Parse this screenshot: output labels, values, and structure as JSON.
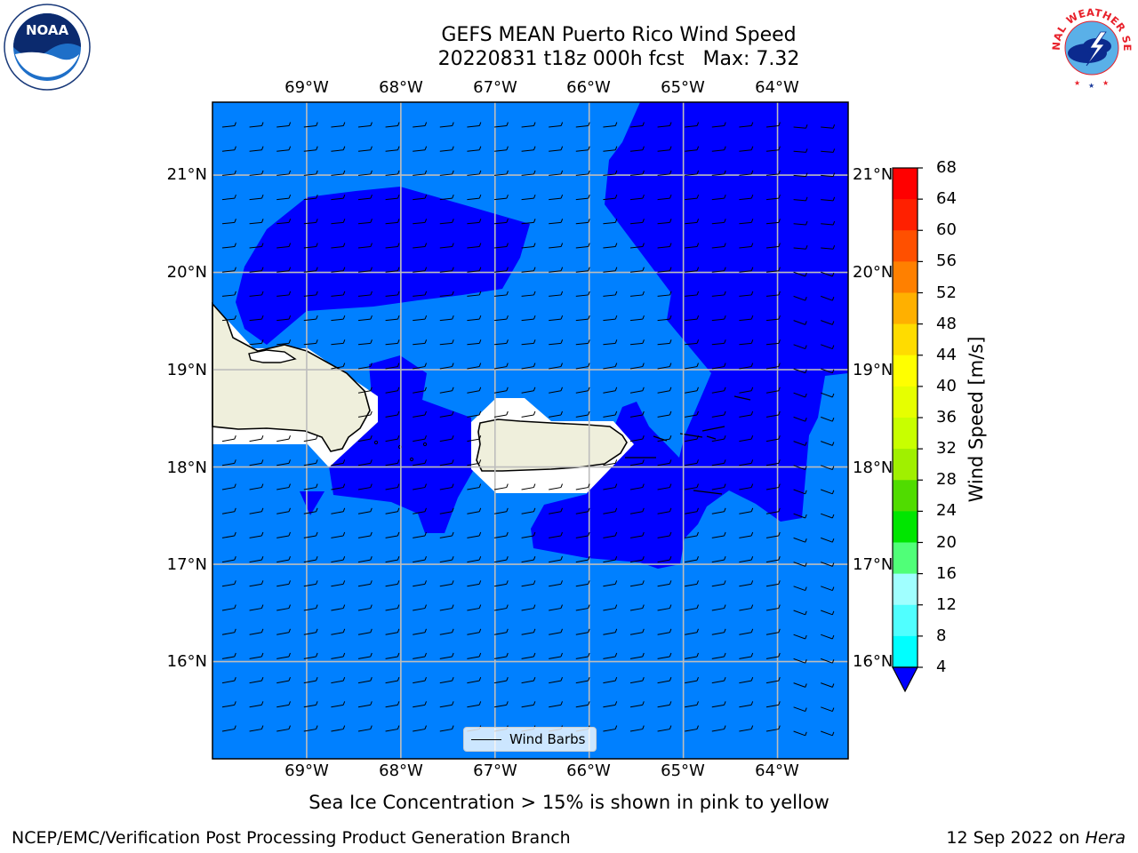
{
  "header": {
    "title_line1": "GEFS MEAN Puerto Rico Wind Speed",
    "title_line2": "20220831 t18z 000h fcst   Max: 7.32"
  },
  "logos": {
    "left_logo_text": "NOAA",
    "right_logo_text": "NATIONAL WEATHER SERVICE"
  },
  "map": {
    "lon_labels": [
      "69°W",
      "68°W",
      "67°W",
      "66°W",
      "65°W",
      "64°W"
    ],
    "lat_labels": [
      "21°N",
      "20°N",
      "19°N",
      "18°N",
      "17°N",
      "16°N"
    ],
    "lon_range": [
      -70.0,
      -63.25
    ],
    "lat_range": [
      15.0,
      21.75
    ],
    "gridlines": true,
    "colors": {
      "speed_4_8": "#0080ff",
      "speed_below_4": "#0000ff",
      "land": "#efefdc",
      "missing": "#ffffff"
    },
    "legend": {
      "label": "Wind Barbs",
      "placement": "bottom-center"
    }
  },
  "colorbar": {
    "label": "Wind Speed [m/s]",
    "ticks": [
      "68",
      "64",
      "60",
      "56",
      "52",
      "48",
      "44",
      "40",
      "36",
      "32",
      "28",
      "24",
      "20",
      "16",
      "12",
      "8",
      "4"
    ],
    "colors": [
      "#ff0000",
      "#ff2000",
      "#ff5000",
      "#ff8000",
      "#ffb000",
      "#ffdc00",
      "#ffff00",
      "#e6ff00",
      "#c8ff00",
      "#a0f000",
      "#50dc00",
      "#00e600",
      "#50ff78",
      "#a0ffff",
      "#50ffff",
      "#00ffff",
      "#00c8ff",
      "#0080ff"
    ],
    "extend_color": "#0000ff"
  },
  "footer": {
    "note": "Sea Ice Concentration > 15% is shown in pink to yellow",
    "credit": "NCEP/EMC/Verification Post Processing Product Generation Branch",
    "date_text": "12 Sep 2022 on ",
    "machine": "Hera"
  }
}
